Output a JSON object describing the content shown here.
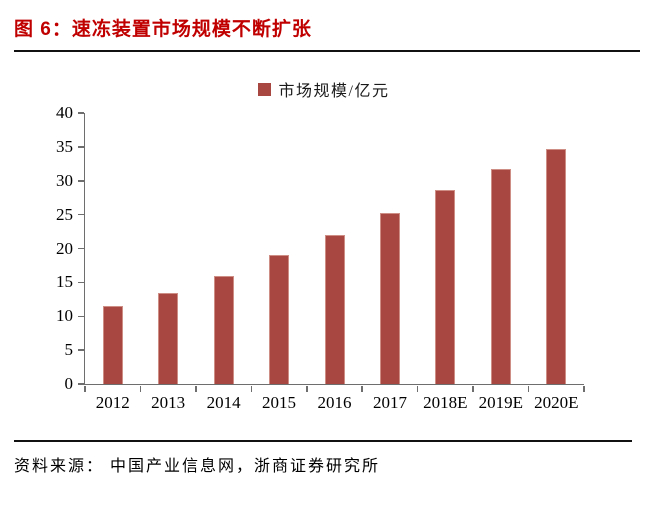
{
  "header": {
    "title": "图 6：速冻装置市场规模不断扩张"
  },
  "legend": {
    "label": "市场规模/亿元"
  },
  "chart_data": {
    "type": "bar",
    "title": "图 6：速冻装置市场规模不断扩张",
    "categories": [
      "2012",
      "2013",
      "2014",
      "2015",
      "2016",
      "2017",
      "2018E",
      "2019E",
      "2020E"
    ],
    "values": [
      11.5,
      13.4,
      16.0,
      19.0,
      22.0,
      25.2,
      28.6,
      31.7,
      34.7
    ],
    "series_name": "市场规模/亿元",
    "xlabel": "",
    "ylabel": "",
    "ylim": [
      0,
      40
    ],
    "yticks": [
      0,
      5,
      10,
      15,
      20,
      25,
      30,
      35,
      40
    ],
    "grid": false,
    "legend_position": "top-center",
    "bar_color": "#A84742",
    "bar_edge_color": "#CE8E86",
    "axis_color": "#6e6e6e",
    "title_color": "#C00000"
  },
  "footer": {
    "source": "资料来源： 中国产业信息网，浙商证券研究所"
  }
}
